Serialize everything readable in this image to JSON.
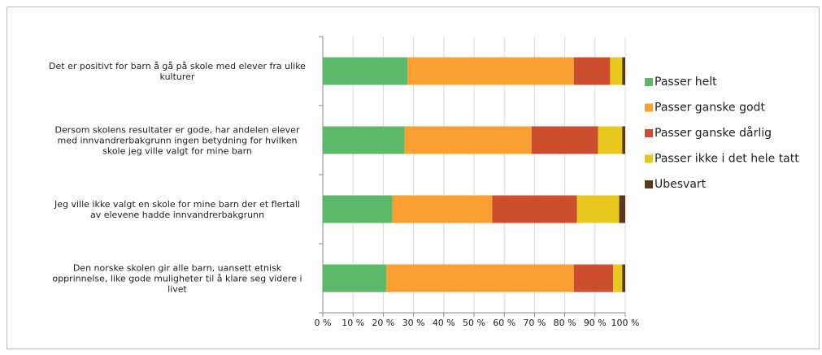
{
  "chart_data": {
    "type": "stacked-bar-horizontal",
    "categories": [
      "Det er positivt for barn å gå på skole med elever fra ulike\nkulturer",
      "Dersom skolens resultater er gode, har andelen elever\nmed innvandrerbakgrunn  ingen betydning for hvilken\nskole jeg ville valgt for mine barn",
      "Jeg ville ikke valgt en skole for mine barn der et flertall\nav elevene hadde innvandrerbakgrunn",
      "Den norske skolen gir alle barn, uansett etnisk\nopprinnelse, like gode muligheter til å klare seg videre i\nlivet"
    ],
    "series": [
      {
        "name": "Passer helt",
        "color": "#5cb96c",
        "values": [
          28,
          27,
          23,
          21
        ]
      },
      {
        "name": "Passer ganske godt",
        "color": "#fa9f31",
        "values": [
          55,
          42,
          33,
          62
        ]
      },
      {
        "name": "Passer ganske dårlig",
        "color": "#cc4e2e",
        "values": [
          12,
          22,
          28,
          13
        ]
      },
      {
        "name": "Passer ikke i det hele tatt",
        "color": "#e8c71e",
        "values": [
          4,
          8,
          14,
          3
        ]
      },
      {
        "name": "Ubesvart",
        "color": "#5a3a1c",
        "values": [
          1,
          1,
          2,
          1
        ]
      }
    ],
    "xlim": [
      0,
      100
    ],
    "xticks": [
      {
        "value": 0,
        "label": "0 %"
      },
      {
        "value": 10,
        "label": "10 %"
      },
      {
        "value": 20,
        "label": "20 %"
      },
      {
        "value": 30,
        "label": "30 %"
      },
      {
        "value": 40,
        "label": "40 %"
      },
      {
        "value": 50,
        "label": "50 %"
      },
      {
        "value": 60,
        "label": "60 %"
      },
      {
        "value": 70,
        "label": "70 %"
      },
      {
        "value": 80,
        "label": "80 %"
      },
      {
        "value": 90,
        "label": "90 %"
      },
      {
        "value": 100,
        "label": "100 %"
      }
    ],
    "grid": true,
    "legend": "right"
  }
}
